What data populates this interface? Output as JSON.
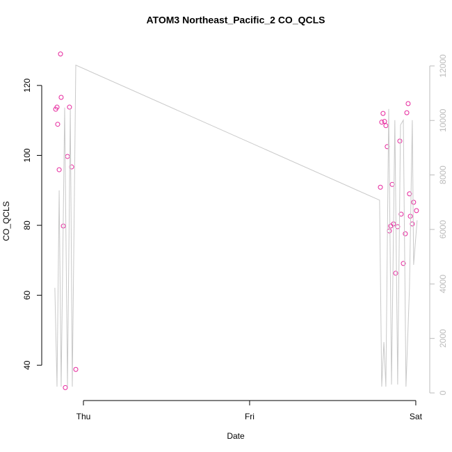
{
  "chart_data": {
    "type": "scatter",
    "title": "ATOM3 Northeast_Pacific_2 CO_QCLS",
    "xlabel": "Date",
    "ylabel": "CO_QCLS",
    "xlim": [
      -0.251,
      2.084
    ],
    "xticks": [
      {
        "value": 0,
        "label": "Thu"
      },
      {
        "value": 1,
        "label": "Fri"
      },
      {
        "value": 2,
        "label": "Sat"
      }
    ],
    "ylim": [
      29.9,
      132.5
    ],
    "yticks": [
      40,
      60,
      80,
      100,
      120
    ],
    "y2lim": [
      -280,
      12890
    ],
    "y2ticks": [
      0,
      2000,
      4000,
      6000,
      8000,
      10000,
      12000
    ],
    "series": [
      {
        "type": "scatter",
        "color": "#e6259c",
        "x": [
          -0.167,
          -0.159,
          -0.155,
          -0.146,
          -0.138,
          -0.134,
          -0.121,
          -0.109,
          -0.096,
          -0.084,
          -0.071,
          -0.046,
          1.787,
          1.795,
          1.803,
          1.812,
          1.82,
          1.828,
          1.841,
          1.849,
          1.858,
          1.866,
          1.879,
          1.891,
          1.904,
          1.912,
          1.925,
          1.937,
          1.946,
          1.954,
          1.962,
          1.967,
          1.979,
          1.987,
          2.004
        ],
        "values": [
          113.2,
          113.8,
          108.9,
          95.9,
          129.0,
          116.6,
          79.8,
          33.6,
          99.7,
          113.8,
          96.7,
          38.8,
          90.9,
          109.5,
          112.0,
          109.7,
          108.5,
          102.5,
          78.4,
          79.8,
          91.7,
          80.4,
          66.3,
          79.6,
          104.1,
          83.2,
          69.1,
          77.6,
          112.2,
          114.8,
          89.0,
          82.6,
          80.4,
          86.6,
          84.2
        ]
      },
      {
        "type": "line",
        "axis": "y2",
        "color": "#c8c8c8",
        "x": [
          -0.172,
          -0.159,
          -0.146,
          -0.134,
          -0.113,
          -0.096,
          -0.079,
          -0.067,
          -0.046,
          1.782,
          1.795,
          1.808,
          1.82,
          1.837,
          1.854,
          1.874,
          1.891,
          1.908,
          1.925,
          1.941,
          1.962,
          1.979,
          1.987,
          2.008
        ],
        "values": [
          3857,
          230,
          7433,
          230,
          10473,
          230,
          10421,
          230,
          12031,
          7075,
          230,
          1865,
          230,
          10421,
          307,
          10013,
          307,
          9834,
          10013,
          230,
          3857,
          10013,
          4700,
          6335
        ]
      }
    ]
  }
}
